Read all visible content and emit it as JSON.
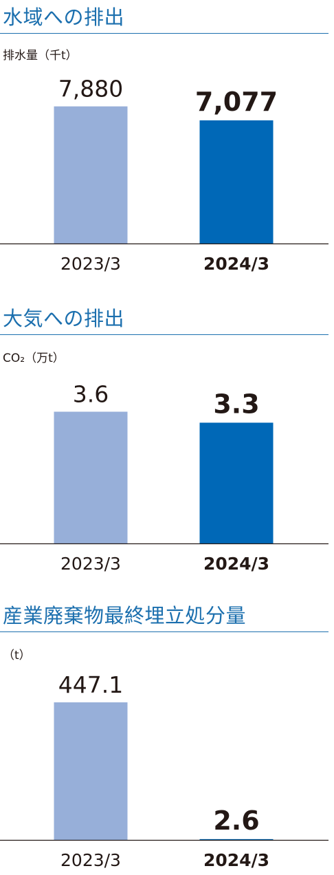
{
  "chart_data": [
    {
      "type": "bar",
      "title": "水域への排出",
      "ylabel": "排水量（千t）",
      "categories": [
        "2023/3",
        "2024/3"
      ],
      "values": [
        7880,
        7077
      ],
      "value_labels": [
        "7,880",
        "7,077"
      ],
      "ylim": [
        0,
        10000
      ],
      "grid": false,
      "colors": [
        "#97afd9",
        "#0068b7"
      ]
    },
    {
      "type": "bar",
      "title": "大気への排出",
      "ylabel": "CO₂（万t）",
      "categories": [
        "2023/3",
        "2024/3"
      ],
      "values": [
        3.6,
        3.3
      ],
      "value_labels": [
        "3.6",
        "3.3"
      ],
      "ylim": [
        0,
        4.7
      ],
      "grid": false,
      "colors": [
        "#97afd9",
        "#0068b7"
      ]
    },
    {
      "type": "bar",
      "title": "産業廃棄物最終埋立処分量",
      "ylabel": "（t）",
      "categories": [
        "2023/3",
        "2024/3"
      ],
      "values": [
        447.1,
        2.6
      ],
      "value_labels": [
        "447.1",
        "2.6"
      ],
      "ylim": [
        0,
        447.1
      ],
      "grid": false,
      "colors": [
        "#97afd9",
        "#0068b7"
      ]
    }
  ]
}
